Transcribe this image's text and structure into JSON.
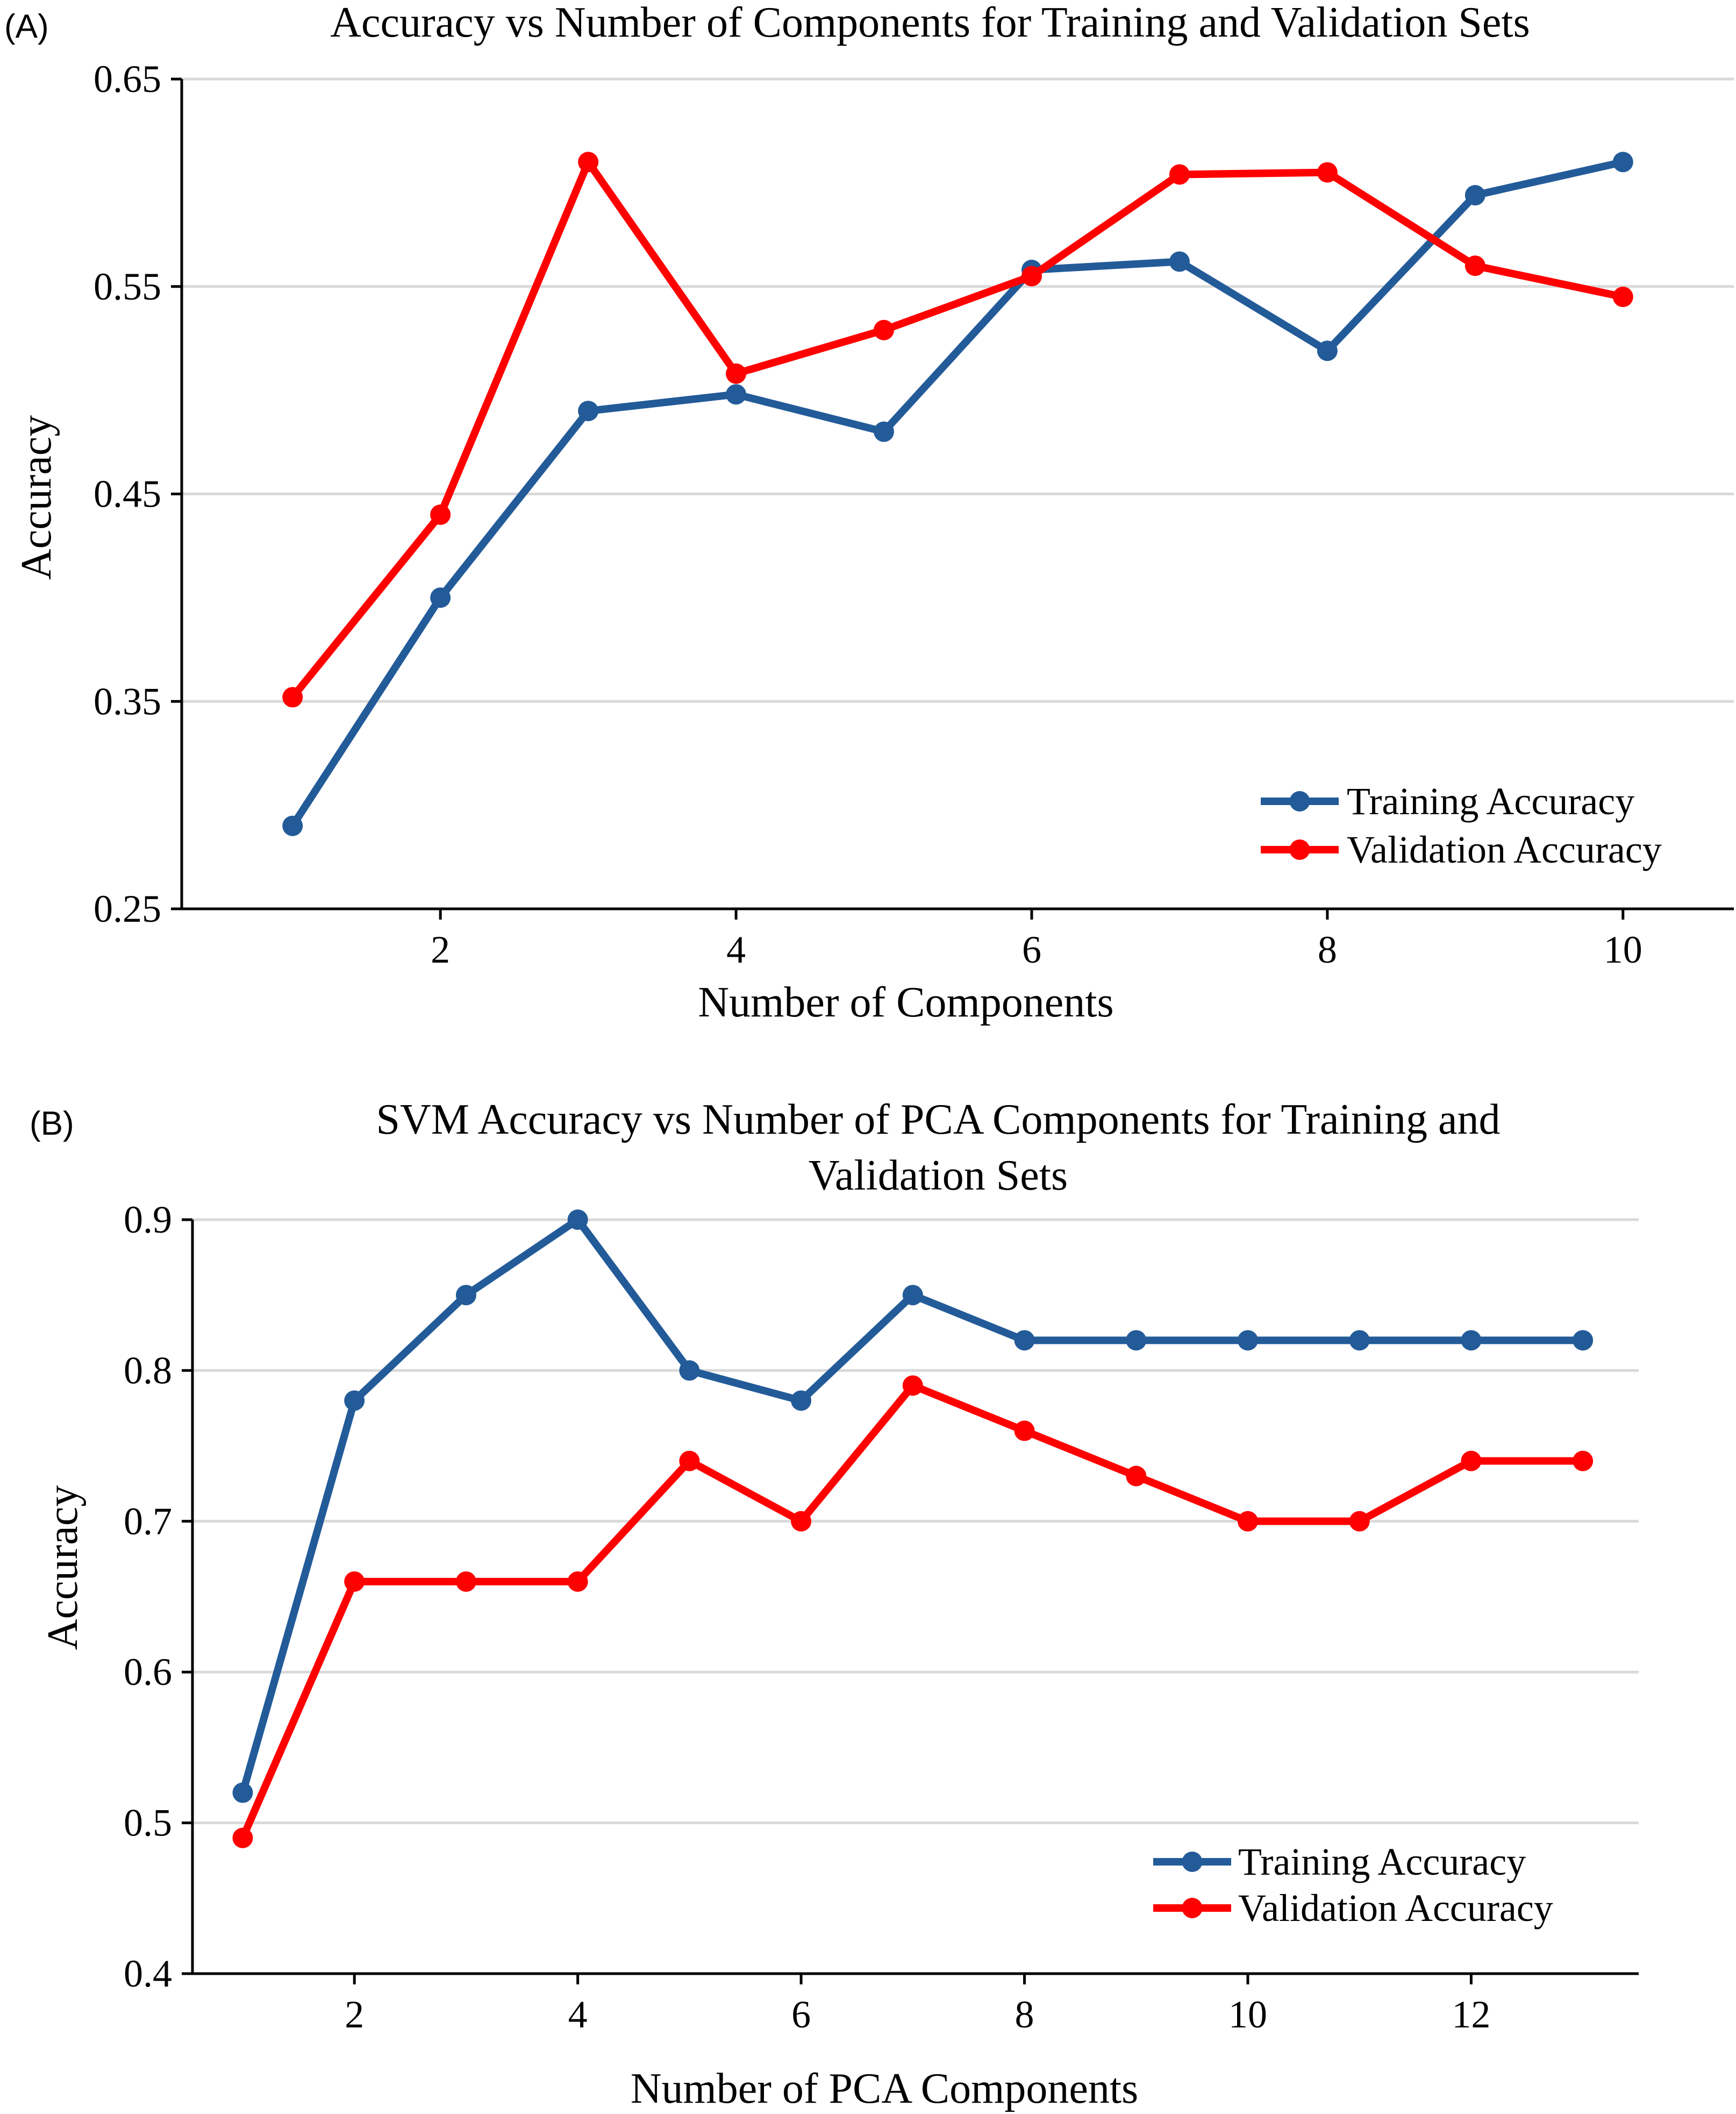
{
  "chart_data": [
    {
      "panel_label": "(A)",
      "type": "line",
      "title_lines": [
        "Accuracy vs Number of Components for Training and Validation Sets"
      ],
      "xlabel": "Number of Components",
      "ylabel": "Accuracy",
      "xlim": [
        0.25,
        10.75
      ],
      "ylim": [
        0.25,
        0.65
      ],
      "xticks": [
        2,
        4,
        6,
        8,
        10
      ],
      "yticks": [
        0.25,
        0.35,
        0.45,
        0.55,
        0.65
      ],
      "ytick_labels": [
        "0.25",
        "0.35",
        "0.45",
        "0.55",
        "0.65"
      ],
      "grid": true,
      "legend_position": "bottom-right",
      "x": [
        1,
        2,
        3,
        4,
        5,
        6,
        7,
        8,
        9,
        10
      ],
      "series": [
        {
          "name": "Training Accuracy",
          "color": "#235b99",
          "values": [
            0.29,
            0.4,
            0.49,
            0.498,
            0.48,
            0.558,
            0.562,
            0.519,
            0.594,
            0.61
          ]
        },
        {
          "name": "Validation Accuracy",
          "color": "#ff0000",
          "values": [
            0.352,
            0.44,
            0.61,
            0.508,
            0.529,
            0.555,
            0.604,
            0.605,
            0.56,
            0.545
          ]
        }
      ]
    },
    {
      "panel_label": "(B)",
      "type": "line",
      "title_lines": [
        "SVM Accuracy vs Number of PCA Components for Training and",
        "Validation Sets"
      ],
      "xlabel": "Number of PCA Components",
      "ylabel": "Accuracy",
      "xlim": [
        0.55,
        13.5
      ],
      "ylim": [
        0.4,
        0.9
      ],
      "xticks": [
        2,
        4,
        6,
        8,
        10,
        12
      ],
      "yticks": [
        0.4,
        0.5,
        0.6,
        0.7,
        0.8,
        0.9
      ],
      "ytick_labels": [
        "0.4",
        "0.5",
        "0.6",
        "0.7",
        "0.8",
        "0.9"
      ],
      "grid": true,
      "legend_position": "bottom-right",
      "x": [
        1,
        2,
        3,
        4,
        5,
        6,
        7,
        8,
        9,
        10,
        11,
        12,
        13
      ],
      "series": [
        {
          "name": "Training Accuracy",
          "color": "#235b99",
          "values": [
            0.52,
            0.78,
            0.85,
            0.9,
            0.8,
            0.78,
            0.85,
            0.82,
            0.82,
            0.82,
            0.82,
            0.82,
            0.82
          ]
        },
        {
          "name": "Validation Accuracy",
          "color": "#ff0000",
          "values": [
            0.49,
            0.66,
            0.66,
            0.66,
            0.74,
            0.7,
            0.79,
            0.76,
            0.73,
            0.7,
            0.7,
            0.74,
            0.74
          ]
        }
      ]
    }
  ]
}
